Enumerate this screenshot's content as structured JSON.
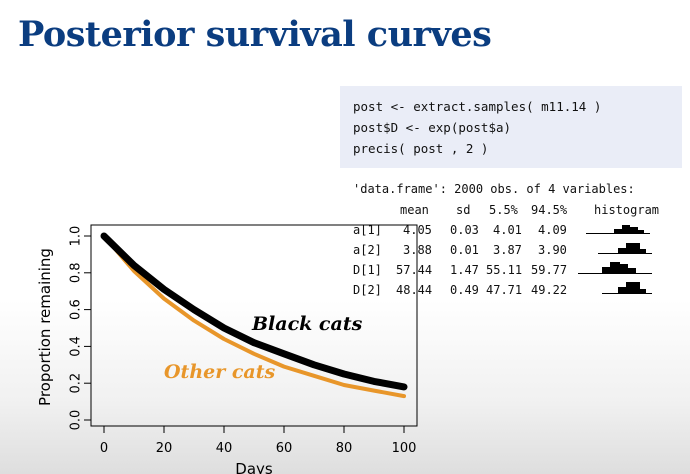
{
  "slide": {
    "title": "Posterior survival curves"
  },
  "code": {
    "lines": [
      "post <- extract.samples( m11.14 )",
      "post$D <- exp(post$a)",
      "precis( post , 2 )"
    ]
  },
  "precis": {
    "header": "'data.frame': 2000 obs. of 4 variables:",
    "columns": [
      "mean",
      "sd",
      "5.5%",
      "94.5%",
      "histogram"
    ],
    "rows": [
      {
        "name": "a[1]",
        "mean": "4.05",
        "sd": "0.03",
        "lo": "4.01",
        "hi": "4.09"
      },
      {
        "name": "a[2]",
        "mean": "3.88",
        "sd": "0.01",
        "lo": "3.87",
        "hi": "3.90"
      },
      {
        "name": "D[1]",
        "mean": "57.44",
        "sd": "1.47",
        "lo": "55.11",
        "hi": "59.77"
      },
      {
        "name": "D[2]",
        "mean": "48.44",
        "sd": "0.49",
        "lo": "47.71",
        "hi": "49.22"
      }
    ]
  },
  "chart_data": {
    "type": "line",
    "xlabel": "Days",
    "ylabel": "Proportion remaining",
    "xlim": [
      0,
      100
    ],
    "ylim": [
      0,
      1
    ],
    "xticks": [
      "0",
      "20",
      "40",
      "60",
      "80",
      "100"
    ],
    "yticks": [
      "0.0",
      "0.2",
      "0.4",
      "0.6",
      "0.8",
      "1.0"
    ],
    "series": [
      {
        "name": "Black cats",
        "color": "#000000",
        "x": [
          0,
          10,
          20,
          30,
          40,
          50,
          60,
          70,
          80,
          90,
          100
        ],
        "y": [
          1.0,
          0.84,
          0.71,
          0.6,
          0.5,
          0.42,
          0.36,
          0.3,
          0.25,
          0.21,
          0.18
        ]
      },
      {
        "name": "Other cats",
        "color": "#e8962a",
        "x": [
          0,
          10,
          20,
          30,
          40,
          50,
          60,
          70,
          80,
          90,
          100
        ],
        "y": [
          1.0,
          0.81,
          0.66,
          0.54,
          0.44,
          0.36,
          0.29,
          0.24,
          0.19,
          0.16,
          0.13
        ]
      }
    ]
  }
}
